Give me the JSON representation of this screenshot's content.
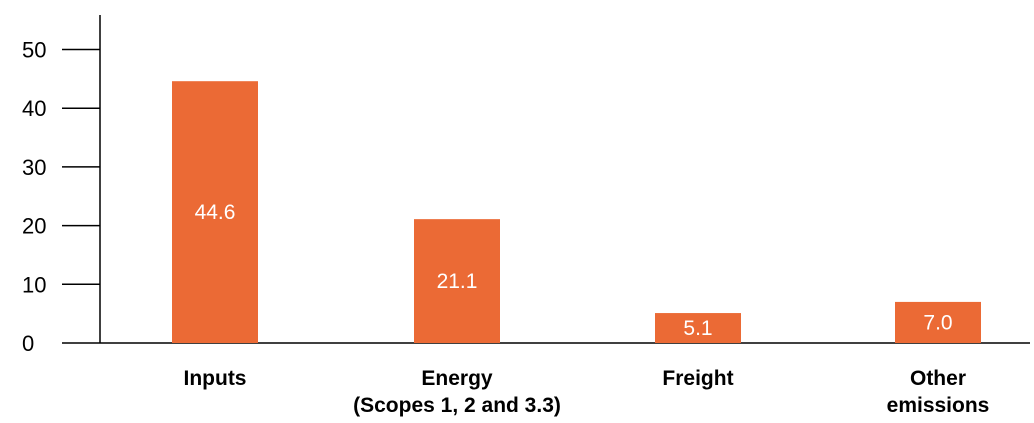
{
  "chart_data": {
    "type": "bar",
    "categories": [
      [
        "Inputs"
      ],
      [
        "Energy",
        "(Scopes 1, 2 and 3.3)"
      ],
      [
        "Freight"
      ],
      [
        "Other",
        "emissions"
      ]
    ],
    "values": [
      44.6,
      21.1,
      5.1,
      7.0
    ],
    "value_labels": [
      "44.6",
      "21.1",
      "5.1",
      "7.0"
    ],
    "yticks": [
      0,
      10,
      20,
      30,
      40,
      50
    ],
    "ylim": [
      0,
      55
    ],
    "title": "",
    "xlabel": "",
    "ylabel": "",
    "grid": false,
    "bar_color": "#EB6A35",
    "axis_color": "#000000"
  }
}
